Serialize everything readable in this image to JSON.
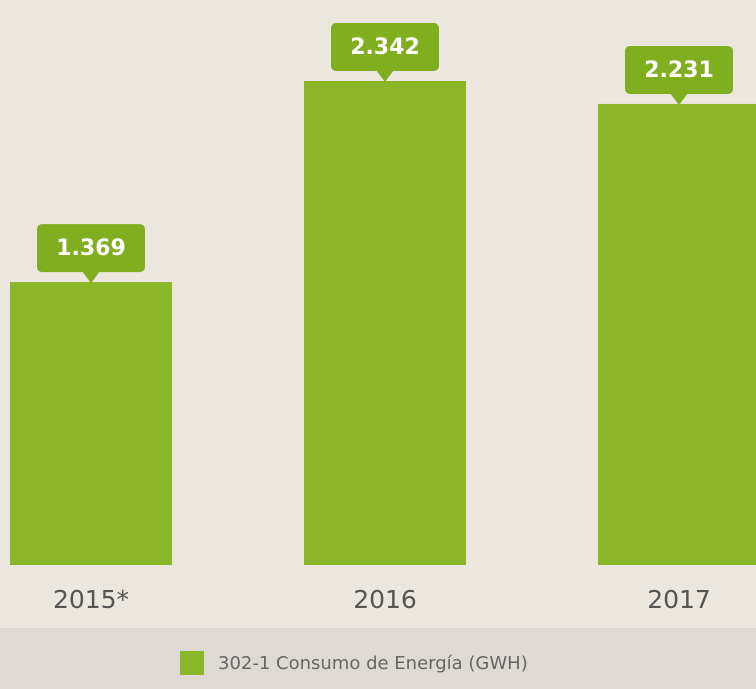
{
  "chart_data": {
    "type": "bar",
    "categories": [
      "2015*",
      "2016",
      "2017"
    ],
    "series": [
      {
        "name": "302-1 Consumo de Energía (GWH)",
        "color": "#8bb628",
        "values": [
          1369,
          2342,
          2231
        ],
        "value_labels": [
          "1.369",
          "2.342",
          "2.231"
        ]
      }
    ]
  }
}
